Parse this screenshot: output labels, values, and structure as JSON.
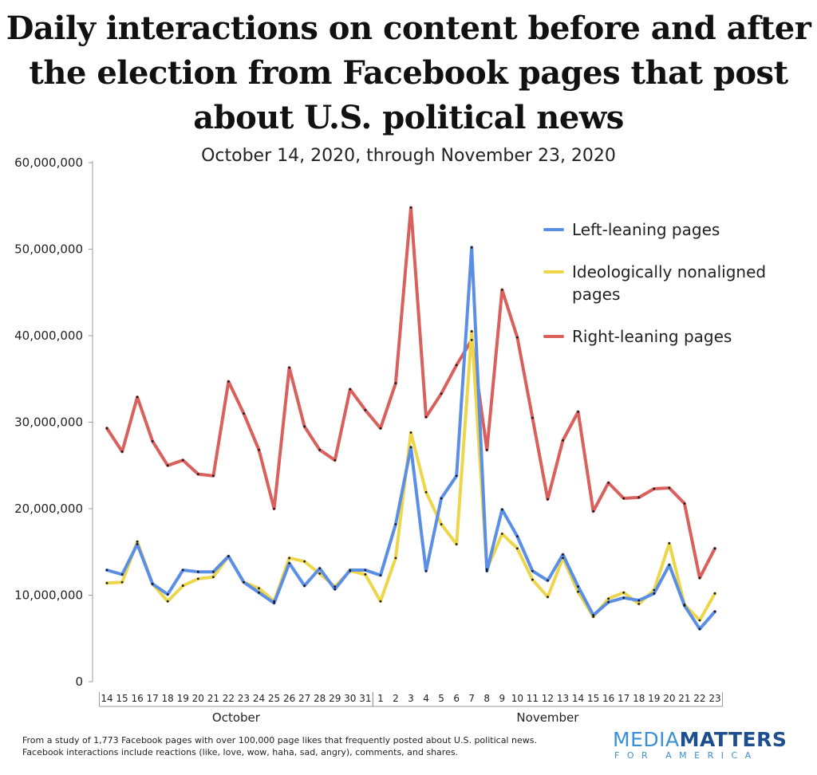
{
  "title_lines": [
    "Daily interactions on content before and after",
    "the election from Facebook pages that post",
    "about U.S. political news"
  ],
  "subtitle": "October 14, 2020, through November 23, 2020",
  "footnote_lines": [
    "From a study of 1,773 Facebook pages with over 100,000 page likes that frequently posted about U.S. political news.",
    "Facebook interactions include reactions (like, love, wow, haha, sad, angry), comments, and shares."
  ],
  "logo": {
    "main_a": "MEDIA",
    "main_b": "MATTERS",
    "sub": "FOR AMERICA"
  },
  "colors": {
    "left": "#5b8ee6",
    "nonaligned": "#eed64a",
    "right": "#d9605c",
    "axis": "#999999",
    "text": "#222222"
  },
  "chart_data": {
    "type": "line",
    "title": "Daily interactions on content before and after the election from Facebook pages that post about U.S. political news",
    "subtitle": "October 14, 2020, through November 23, 2020",
    "xlabel": "",
    "ylabel": "",
    "ylim": [
      0,
      60000000
    ],
    "yticks": [
      0,
      10000000,
      20000000,
      30000000,
      40000000,
      50000000,
      60000000
    ],
    "ytick_labels": [
      "0",
      "10,000,000",
      "20,000,000",
      "30,000,000",
      "40,000,000",
      "50,000,000",
      "60,000,000"
    ],
    "grid": false,
    "legend_position": "top-right",
    "categories": [
      "14",
      "15",
      "16",
      "17",
      "18",
      "19",
      "20",
      "21",
      "22",
      "23",
      "24",
      "25",
      "26",
      "27",
      "28",
      "29",
      "30",
      "31",
      "1",
      "2",
      "3",
      "4",
      "5",
      "6",
      "7",
      "8",
      "9",
      "10",
      "11",
      "12",
      "13",
      "14",
      "15",
      "16",
      "17",
      "18",
      "19",
      "20",
      "21",
      "22",
      "23"
    ],
    "month_groups": [
      {
        "label": "October",
        "start": 0,
        "end": 17
      },
      {
        "label": "November",
        "start": 18,
        "end": 40
      }
    ],
    "series": [
      {
        "name": "Left-leaning pages",
        "color": "#5b8ee6",
        "values": [
          12900000,
          12400000,
          15900000,
          11300000,
          10100000,
          12900000,
          12700000,
          12700000,
          14500000,
          11500000,
          10300000,
          9100000,
          13700000,
          11100000,
          13100000,
          10700000,
          12900000,
          12900000,
          12300000,
          18200000,
          27100000,
          12800000,
          21200000,
          23800000,
          50200000,
          12800000,
          19900000,
          16800000,
          12800000,
          11700000,
          14700000,
          11000000,
          7700000,
          9200000,
          9700000,
          9400000,
          10200000,
          13500000,
          8800000,
          6100000,
          8100000
        ]
      },
      {
        "name": "Ideologically nonaligned pages",
        "color": "#eed64a",
        "values": [
          11400000,
          11500000,
          16200000,
          11300000,
          9300000,
          11100000,
          11900000,
          12100000,
          14500000,
          11500000,
          10800000,
          9300000,
          14300000,
          13900000,
          12500000,
          11000000,
          12800000,
          12400000,
          9300000,
          14300000,
          28800000,
          21900000,
          18200000,
          15900000,
          40500000,
          13000000,
          17100000,
          15400000,
          11800000,
          9800000,
          14300000,
          10400000,
          7500000,
          9600000,
          10300000,
          9000000,
          10600000,
          16000000,
          8900000,
          7100000,
          10200000
        ]
      },
      {
        "name": "Right-leaning pages",
        "color": "#d9605c",
        "values": [
          29300000,
          26600000,
          32900000,
          27800000,
          25000000,
          25600000,
          24000000,
          23800000,
          34700000,
          31000000,
          26800000,
          20000000,
          36300000,
          29500000,
          26800000,
          25600000,
          33800000,
          31400000,
          29300000,
          34500000,
          54800000,
          30600000,
          33300000,
          36600000,
          39500000,
          26800000,
          45300000,
          39800000,
          30500000,
          21100000,
          27900000,
          31200000,
          19700000,
          23000000,
          21200000,
          21300000,
          22300000,
          22400000,
          20600000,
          12000000,
          15400000
        ]
      }
    ]
  }
}
